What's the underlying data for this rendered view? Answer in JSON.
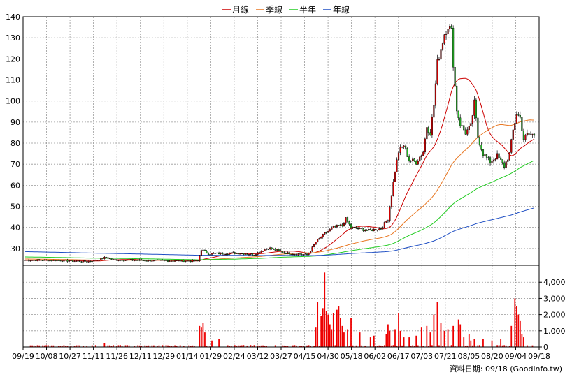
{
  "chart_data": {
    "type": "candlestick",
    "legend": {
      "placement": "top-center",
      "items": [
        {
          "name": "月線",
          "color": "#cc0000"
        },
        {
          "name": "季線",
          "color": "#e87722"
        },
        {
          "name": "半年",
          "color": "#22cc22"
        },
        {
          "name": "年線",
          "color": "#1f4fc4"
        }
      ]
    },
    "price_axis": {
      "ylim": [
        22,
        140
      ],
      "ticks": [
        30,
        40,
        50,
        60,
        70,
        80,
        90,
        100,
        110,
        120,
        130,
        140
      ],
      "side": "left",
      "grid": true
    },
    "volume_axis": {
      "ylim": [
        0,
        4700
      ],
      "ticks": [
        0,
        1000,
        2000,
        3000,
        4000
      ],
      "tick_labels": [
        "0",
        "1,000",
        "2,000",
        "3,000",
        "4,000"
      ],
      "side": "right",
      "grid": true
    },
    "date_labels": [
      "09/19",
      "10/08",
      "10/27",
      "11/11",
      "11/26",
      "12/11",
      "12/29",
      "01/14",
      "01/29",
      "02/24",
      "03/12",
      "03/27",
      "04/15",
      "04/30",
      "05/18",
      "06/02",
      "06/17",
      "07/03",
      "07/21",
      "08/05",
      "08/20",
      "09/04",
      "09/18"
    ],
    "candle_colors": {
      "up": "#cc0000",
      "down": "#22bb22",
      "volume": "#ee0000"
    },
    "source_text": "資料日期: 09/18 (Goodinfo.tw)",
    "close_keypoints": [
      [
        0,
        24.5
      ],
      [
        20,
        24.3
      ],
      [
        35,
        23.8
      ],
      [
        42,
        24.8
      ],
      [
        46,
        25.8
      ],
      [
        50,
        24.6
      ],
      [
        70,
        24.3
      ],
      [
        92,
        24.1
      ],
      [
        98,
        24.0
      ],
      [
        100,
        29.5
      ],
      [
        104,
        27.5
      ],
      [
        120,
        27.8
      ],
      [
        130,
        27.2
      ],
      [
        138,
        30.3
      ],
      [
        148,
        27.8
      ],
      [
        160,
        27.0
      ],
      [
        162,
        29
      ],
      [
        165,
        33
      ],
      [
        170,
        37
      ],
      [
        175,
        40
      ],
      [
        180,
        41
      ],
      [
        182,
        44
      ],
      [
        185,
        40
      ],
      [
        195,
        38.5
      ],
      [
        202,
        39.5
      ],
      [
        206,
        44
      ],
      [
        210,
        67
      ],
      [
        212,
        76
      ],
      [
        215,
        79
      ],
      [
        218,
        72
      ],
      [
        222,
        71
      ],
      [
        226,
        76
      ],
      [
        228,
        88
      ],
      [
        230,
        85
      ],
      [
        232,
        98
      ],
      [
        234,
        118
      ],
      [
        236,
        125
      ],
      [
        238,
        132
      ],
      [
        240,
        136
      ],
      [
        242,
        133
      ],
      [
        243,
        118
      ],
      [
        245,
        96
      ],
      [
        247,
        89
      ],
      [
        250,
        85
      ],
      [
        253,
        88
      ],
      [
        255,
        99
      ],
      [
        257,
        83
      ],
      [
        260,
        75
      ],
      [
        264,
        71
      ],
      [
        268,
        74
      ],
      [
        272,
        69
      ],
      [
        275,
        75
      ],
      [
        277,
        86
      ],
      [
        279,
        94
      ],
      [
        281,
        92
      ],
      [
        283,
        82
      ],
      [
        285,
        84
      ]
    ],
    "volume_spikes": [
      [
        45,
        220
      ],
      [
        99,
        1300
      ],
      [
        100,
        1200
      ],
      [
        101,
        1500
      ],
      [
        102,
        900
      ],
      [
        106,
        400
      ],
      [
        110,
        500
      ],
      [
        165,
        1200
      ],
      [
        166,
        2800
      ],
      [
        168,
        1900
      ],
      [
        169,
        2400
      ],
      [
        170,
        4600
      ],
      [
        171,
        2200
      ],
      [
        172,
        2000
      ],
      [
        173,
        1400
      ],
      [
        174,
        1100
      ],
      [
        175,
        2100
      ],
      [
        177,
        2300
      ],
      [
        178,
        2500
      ],
      [
        179,
        1800
      ],
      [
        180,
        1300
      ],
      [
        181,
        900
      ],
      [
        183,
        1100
      ],
      [
        185,
        1800
      ],
      [
        190,
        900
      ],
      [
        196,
        600
      ],
      [
        198,
        700
      ],
      [
        205,
        800
      ],
      [
        206,
        1400
      ],
      [
        207,
        1000
      ],
      [
        210,
        1100
      ],
      [
        212,
        2100
      ],
      [
        213,
        1000
      ],
      [
        215,
        600
      ],
      [
        218,
        600
      ],
      [
        222,
        700
      ],
      [
        225,
        1200
      ],
      [
        228,
        1300
      ],
      [
        230,
        900
      ],
      [
        232,
        2000
      ],
      [
        234,
        2800
      ],
      [
        236,
        1500
      ],
      [
        238,
        1000
      ],
      [
        240,
        1100
      ],
      [
        243,
        1300
      ],
      [
        246,
        1700
      ],
      [
        247,
        1400
      ],
      [
        249,
        600
      ],
      [
        252,
        800
      ],
      [
        253,
        400
      ],
      [
        255,
        500
      ],
      [
        260,
        500
      ],
      [
        265,
        400
      ],
      [
        270,
        500
      ],
      [
        276,
        1300
      ],
      [
        278,
        3000
      ],
      [
        279,
        2500
      ],
      [
        280,
        2000
      ],
      [
        281,
        1600
      ],
      [
        282,
        800
      ],
      [
        283,
        600
      ]
    ]
  }
}
